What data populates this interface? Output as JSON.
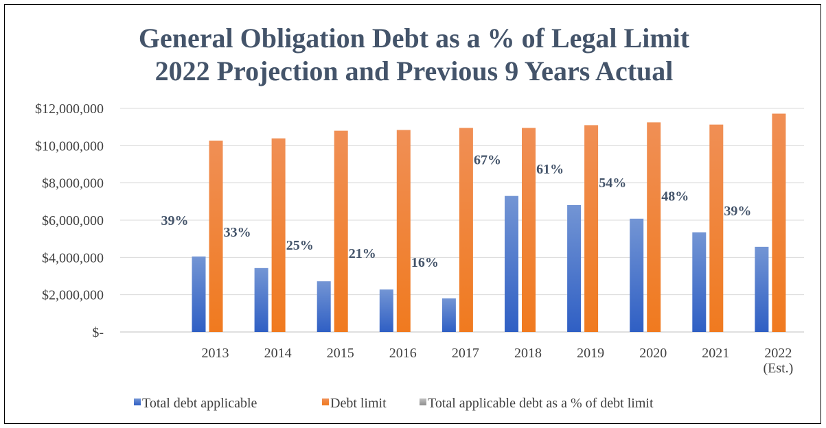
{
  "chart_data": {
    "type": "bar",
    "title_lines": [
      "General Obligation Debt as a % of Legal Limit",
      "2022 Projection and Previous 9 Years Actual"
    ],
    "categories": [
      [
        "2013"
      ],
      [
        "2014"
      ],
      [
        "2015"
      ],
      [
        "2016"
      ],
      [
        "2017"
      ],
      [
        "2018"
      ],
      [
        "2019"
      ],
      [
        "2020"
      ],
      [
        "2021"
      ],
      [
        "2022",
        "(Est.)"
      ]
    ],
    "y_ticks": [
      "$-",
      "$2,000,000",
      "$4,000,000",
      "$6,000,000",
      "$8,000,000",
      "$10,000,000",
      "$12,000,000"
    ],
    "ylim": [
      0,
      12000000
    ],
    "grid": true,
    "legend_position": "bottom",
    "series": [
      {
        "name": "Total debt applicable",
        "color": "#4472c4",
        "values": [
          4050000,
          3430000,
          2720000,
          2280000,
          1800000,
          7300000,
          6810000,
          6080000,
          5350000,
          4570000
        ]
      },
      {
        "name": "Debt limit",
        "color": "#ed7d31",
        "values": [
          10270000,
          10390000,
          10800000,
          10840000,
          10950000,
          10950000,
          11100000,
          11250000,
          11130000,
          11720000
        ]
      },
      {
        "name": "Total applicable debt as a % of debt limit",
        "color": "#a5a5a5",
        "values": [
          39,
          33,
          25,
          21,
          16,
          67,
          61,
          54,
          48,
          39
        ],
        "labels": [
          "39%",
          "33%",
          "25%",
          "21%",
          "16%",
          "67%",
          "61%",
          "54%",
          "48%",
          "39%"
        ]
      }
    ]
  }
}
